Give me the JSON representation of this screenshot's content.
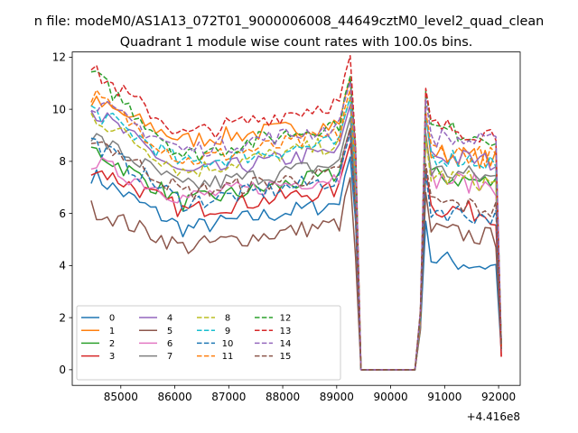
{
  "suptitle": "n file: modeM0/AS1A13_072T01_9000006008_44649cztM0_level2_quad_clean",
  "chart_data": {
    "type": "line",
    "title": "Quadrant 1 module wise count rates with 100.0s bins.",
    "xlabel": "",
    "ylabel": "",
    "x_offset_label": "+4.416e8",
    "xlim": [
      84100,
      92400
    ],
    "ylim": [
      -0.6,
      12.2
    ],
    "xticks": [
      85000,
      86000,
      87000,
      88000,
      89000,
      90000,
      91000,
      92000
    ],
    "xtick_labels": [
      "85000",
      "86000",
      "87000",
      "88000",
      "89000",
      "90000",
      "91000",
      "92000"
    ],
    "yticks": [
      0,
      2,
      4,
      6,
      8,
      10,
      12
    ],
    "ytick_labels": [
      "0",
      "2",
      "4",
      "6",
      "8",
      "10",
      "12"
    ],
    "grid": false,
    "legend_placement": "lower-left",
    "legend_columns": 4,
    "x_segments": [
      {
        "start": 84450,
        "end": 89350,
        "step": 100
      },
      {
        "start": 89450,
        "end": 90450,
        "step": 100
      },
      {
        "start": 90550,
        "end": 92050,
        "step": 100
      }
    ],
    "series": [
      {
        "name": "0",
        "color": "#1f77b4",
        "dash": "solid",
        "levels": [
          7.5,
          5.4,
          6.5,
          4.3,
          0,
          0.7
        ],
        "drop": 5.7
      },
      {
        "name": "1",
        "color": "#ff7f0e",
        "dash": "solid",
        "levels": [
          10.3,
          8.8,
          9.5,
          8.4,
          0,
          0.9
        ],
        "drop": 8.2
      },
      {
        "name": "2",
        "color": "#2ca02c",
        "dash": "solid",
        "levels": [
          8.5,
          6.4,
          7.6,
          7.5,
          0,
          1.0
        ],
        "drop": 6.0
      },
      {
        "name": "3",
        "color": "#d62728",
        "dash": "solid",
        "levels": [
          7.8,
          6.1,
          7.0,
          6.3,
          0,
          0.5
        ],
        "drop": 6.7
      },
      {
        "name": "4",
        "color": "#9467bd",
        "dash": "solid",
        "levels": [
          10.0,
          7.5,
          8.5,
          8.3,
          0,
          1.0
        ],
        "drop": 7.0
      },
      {
        "name": "5",
        "color": "#8c564b",
        "dash": "solid",
        "levels": [
          6.2,
          4.7,
          5.7,
          5.4,
          0,
          0.9
        ],
        "drop": 4.3
      },
      {
        "name": "6",
        "color": "#e377c2",
        "dash": "solid",
        "levels": [
          8.0,
          6.6,
          7.5,
          7.4,
          0,
          1.0
        ],
        "drop": 5.9
      },
      {
        "name": "7",
        "color": "#7f7f7f",
        "dash": "solid",
        "levels": [
          9.0,
          7.0,
          8.0,
          7.7,
          0,
          0.9
        ],
        "drop": 6.8
      },
      {
        "name": "8",
        "color": "#bcbd22",
        "dash": "dash",
        "levels": [
          9.8,
          7.6,
          8.8,
          7.5,
          0,
          0.9
        ],
        "drop": 7.3
      },
      {
        "name": "9",
        "color": "#17becf",
        "dash": "dash",
        "levels": [
          10.0,
          7.9,
          8.8,
          8.3,
          0,
          1.0
        ],
        "drop": 7.4
      },
      {
        "name": "10",
        "color": "#1f77b4",
        "dash": "dash",
        "levels": [
          8.8,
          6.4,
          7.4,
          6.2,
          0,
          0.8
        ],
        "drop": 5.9
      },
      {
        "name": "11",
        "color": "#ff7f0e",
        "dash": "dash",
        "levels": [
          10.6,
          8.0,
          9.1,
          8.5,
          0,
          0.9
        ],
        "drop": 7.6
      },
      {
        "name": "12",
        "color": "#2ca02c",
        "dash": "dash",
        "levels": [
          11.4,
          8.2,
          9.6,
          9.3,
          0,
          1.0
        ],
        "drop": 8.5
      },
      {
        "name": "13",
        "color": "#d62728",
        "dash": "dash",
        "levels": [
          11.5,
          9.0,
          10.4,
          9.4,
          0,
          0.5
        ],
        "drop": 8.6
      },
      {
        "name": "14",
        "color": "#9467bd",
        "dash": "dash",
        "levels": [
          10.3,
          8.4,
          9.4,
          9.0,
          0,
          1.0
        ],
        "drop": 8.3
      },
      {
        "name": "15",
        "color": "#8c564b",
        "dash": "dash",
        "levels": [
          9.0,
          6.8,
          7.6,
          6.5,
          0,
          0.8
        ],
        "drop": 6.0
      }
    ]
  }
}
